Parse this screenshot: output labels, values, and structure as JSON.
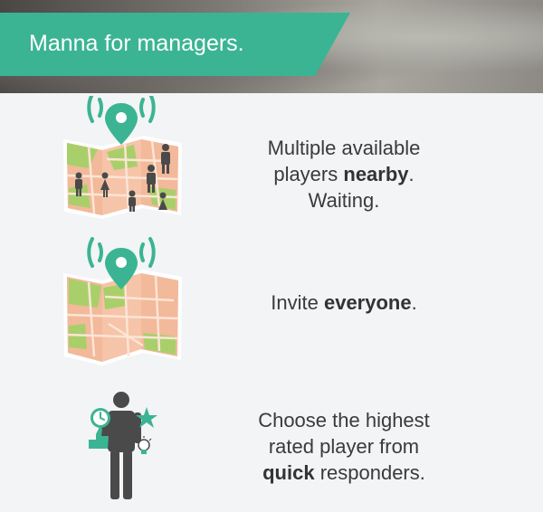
{
  "banner": {
    "title": "Manna for managers."
  },
  "colors": {
    "accent": "#3bb493",
    "map_green": "#a9cf6a",
    "map_pink": "#f6c4a8",
    "person": "#4a4a4a"
  },
  "rows": [
    {
      "icon": "map-with-players-icon",
      "line1": "Multiple available",
      "line2_pre": "players ",
      "line2_bold": "nearby",
      "line2_post": ".",
      "line3": "Waiting."
    },
    {
      "icon": "map-broadcast-icon",
      "pre": "Invite ",
      "bold": "everyone",
      "post": "."
    },
    {
      "icon": "player-with-timer-icon",
      "line1": "Choose the highest",
      "line2": "rated player from",
      "line3_bold": "quick",
      "line3_post": " responders."
    }
  ]
}
